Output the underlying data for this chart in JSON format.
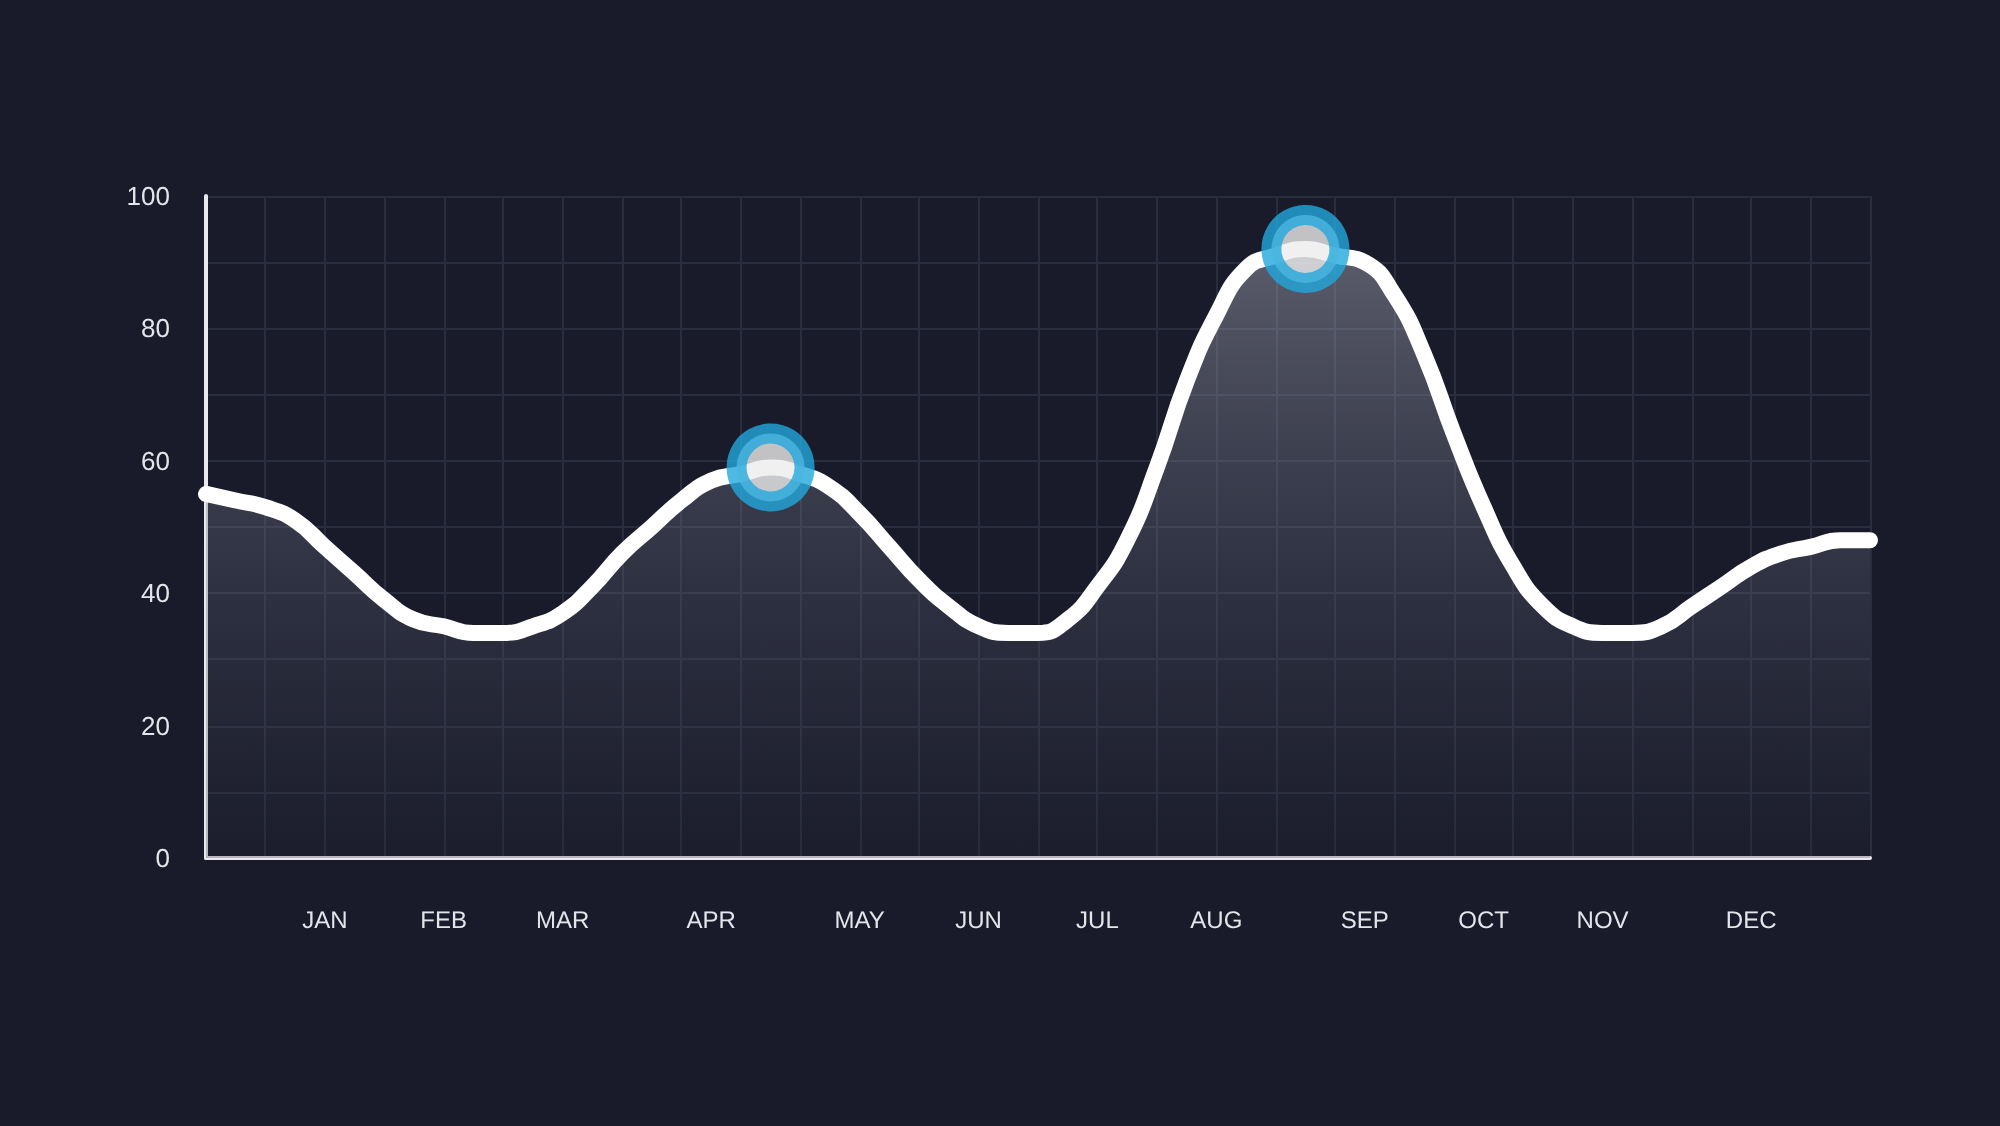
{
  "chart_data": {
    "type": "area",
    "categories": [
      null,
      null,
      null,
      null,
      "JAN",
      null,
      null,
      null,
      "FEB",
      null,
      null,
      null,
      "MAR",
      null,
      null,
      null,
      null,
      "APR",
      null,
      null,
      null,
      null,
      "MAY",
      null,
      null,
      null,
      "JUN",
      null,
      null,
      null,
      "JUL",
      null,
      null,
      null,
      "AUG",
      null,
      null,
      null,
      null,
      "SEP",
      null,
      null,
      null,
      "OCT",
      null,
      null,
      null,
      "NOV",
      null,
      null,
      null,
      null,
      "DEC",
      null,
      null,
      null,
      null
    ],
    "series": [
      {
        "color": "#ffffff",
        "values": [
          55,
          54,
          53,
          51,
          47,
          43,
          39,
          36,
          35,
          34,
          34,
          35,
          37,
          41,
          46,
          50,
          54,
          57,
          58,
          59,
          58,
          56,
          52,
          47,
          42,
          38,
          35,
          34,
          34,
          36,
          41,
          48,
          59,
          72,
          82,
          89,
          91,
          92,
          91,
          90,
          85,
          76,
          64,
          53,
          44,
          38,
          35,
          34,
          34,
          35,
          38,
          41,
          44,
          46,
          47,
          48,
          48
        ]
      },
      {
        "type": "scatter",
        "marker": "circle",
        "color": "#22a7dc",
        "values": [
          null,
          null,
          null,
          null,
          null,
          null,
          null,
          null,
          null,
          null,
          null,
          null,
          null,
          null,
          null,
          null,
          null,
          null,
          null,
          59,
          null,
          null,
          null,
          null,
          null,
          null,
          null,
          null,
          null,
          null,
          null,
          null,
          null,
          null,
          null,
          null,
          null,
          92,
          null,
          null,
          null,
          null,
          null,
          null,
          null,
          null,
          null,
          null,
          null,
          null,
          null,
          null,
          null,
          null,
          null,
          null,
          null
        ]
      }
    ],
    "marker": "none",
    "ylim": [
      0,
      100
    ],
    "yticks": [
      0,
      {
        "value": 10,
        "label": null
      },
      20,
      {
        "value": 30,
        "label": null
      },
      40,
      {
        "value": 50,
        "label": null
      },
      60,
      {
        "value": 70,
        "label": null
      },
      80,
      {
        "value": 90,
        "label": null
      },
      100
    ],
    "grid": true
  }
}
